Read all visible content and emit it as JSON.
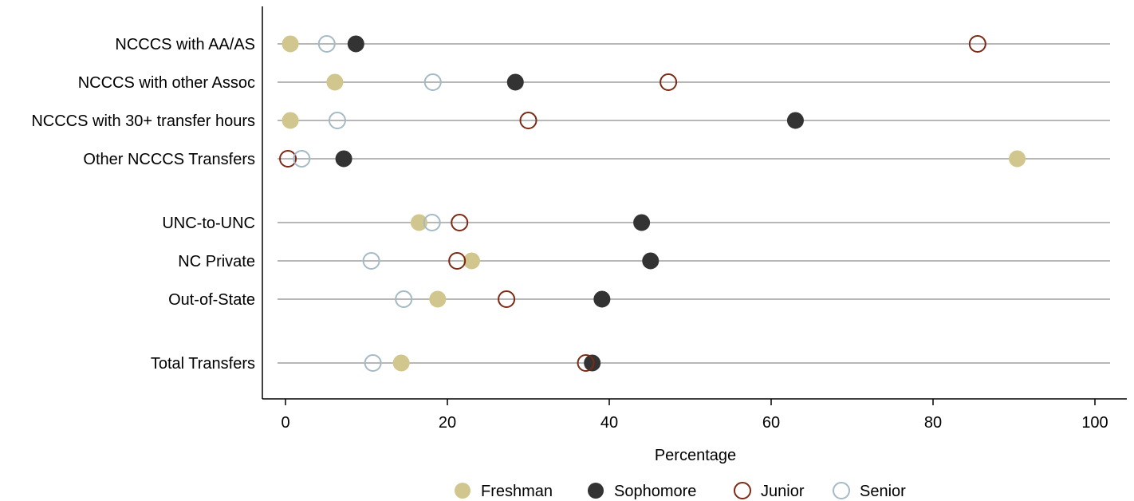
{
  "chart_data": {
    "type": "dot",
    "title": "",
    "xlabel": "Percentage",
    "ylabel": "",
    "xlim": [
      0,
      100
    ],
    "xticks": [
      0,
      20,
      40,
      60,
      80,
      100
    ],
    "grid": false,
    "legend_position": "bottom",
    "categories": [
      "NCCCS with AA/AS",
      "NCCCS with other Assoc",
      "NCCCS with 30+ transfer hours",
      "Other NCCCS Transfers",
      "UNC-to-UNC",
      "NC Private",
      "Out-of-State",
      "Total Transfers"
    ],
    "category_groups": [
      [
        0,
        1,
        2,
        3
      ],
      [
        4,
        5,
        6
      ],
      [
        7
      ]
    ],
    "series": [
      {
        "name": "Freshman",
        "marker": "filled",
        "color": "#D1C78E",
        "values": [
          0.6,
          6.1,
          0.6,
          90.4,
          16.5,
          23.0,
          18.8,
          14.3
        ]
      },
      {
        "name": "Sophomore",
        "marker": "filled",
        "color": "#333333",
        "values": [
          8.7,
          28.4,
          63.0,
          7.2,
          44.0,
          45.1,
          39.1,
          37.9
        ]
      },
      {
        "name": "Junior",
        "marker": "hollow",
        "color": "#7B2A15",
        "values": [
          85.5,
          47.3,
          30.0,
          0.3,
          21.5,
          21.2,
          27.3,
          37.1
        ]
      },
      {
        "name": "Senior",
        "marker": "hollow",
        "color": "#A5BAC4",
        "values": [
          5.1,
          18.2,
          6.4,
          2.0,
          18.1,
          10.6,
          14.6,
          10.8
        ]
      }
    ],
    "colors": {
      "reference_line": "#8C8C8C",
      "axis": "#000000"
    }
  }
}
